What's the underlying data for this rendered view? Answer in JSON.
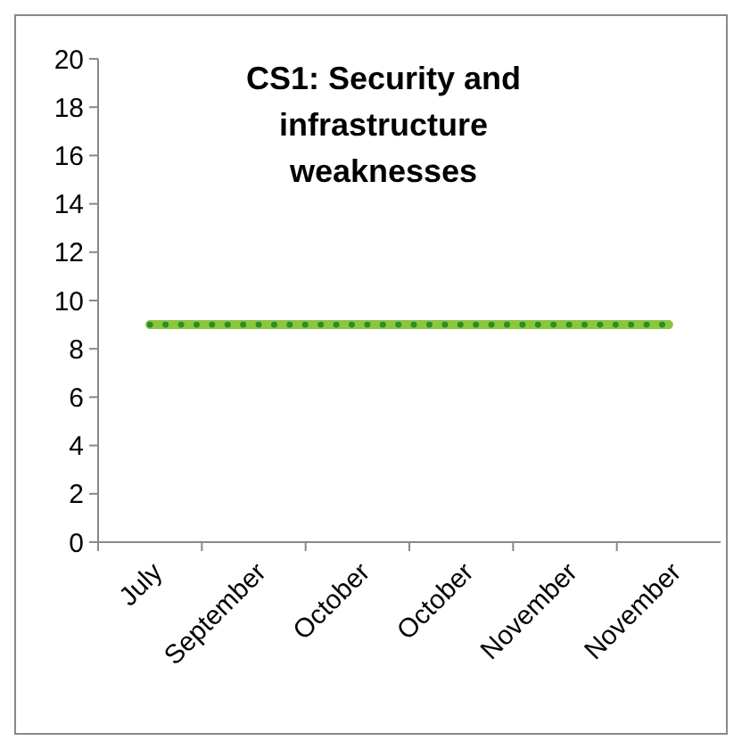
{
  "chart_data": {
    "type": "line",
    "title": "CS1: Security and infrastructure weaknesses",
    "categories": [
      "July",
      "September",
      "October",
      "October",
      "November",
      "November"
    ],
    "series": [
      {
        "color": "#8cc63f",
        "values": [
          9,
          9,
          9,
          9,
          9,
          9
        ],
        "line_style": "solid"
      },
      {
        "color": "#2e8b2e",
        "values": [
          9,
          9,
          9,
          9,
          9,
          9
        ],
        "line_style": "dotted"
      }
    ],
    "ylim": [
      0,
      20
    ],
    "yticks": [
      0,
      2,
      4,
      6,
      8,
      10,
      12,
      14,
      16,
      18,
      20
    ],
    "grid": false
  }
}
